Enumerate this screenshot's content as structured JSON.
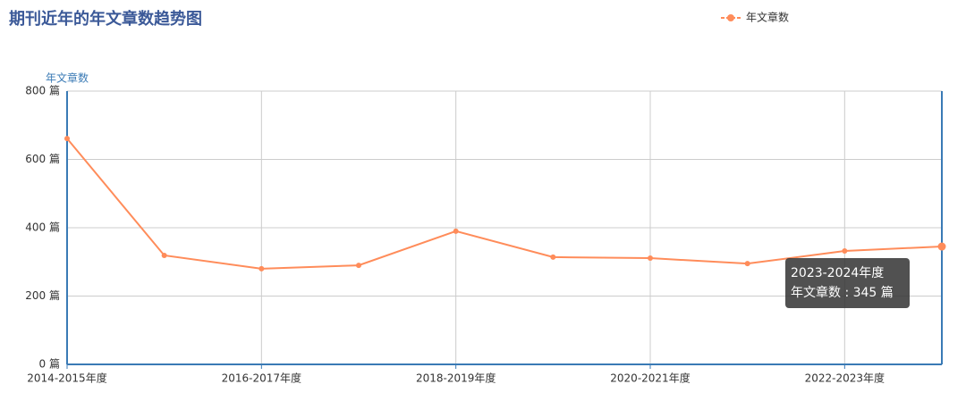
{
  "chart_data": {
    "type": "line",
    "title": "期刊近年的年文章数趋势图",
    "y_axis_name": "年文章数",
    "categories": [
      "2014-2015年度",
      null,
      "2016-2017年度",
      null,
      "2018-2019年度",
      null,
      "2020-2021年度",
      null,
      "2022-2023年度",
      null
    ],
    "series": [
      {
        "name": "年文章数",
        "color": "#ff8c5a",
        "values": [
          661,
          319,
          280,
          290,
          390,
          314,
          311,
          295,
          332,
          345
        ]
      }
    ],
    "ylim": [
      0,
      800
    ],
    "yticks": [
      {
        "value": 0,
        "label": "0 篇"
      },
      {
        "value": 200,
        "label": "200 篇"
      },
      {
        "value": 400,
        "label": "400 篇"
      },
      {
        "value": 600,
        "label": "600 篇"
      },
      {
        "value": 800,
        "label": "800 篇"
      }
    ],
    "grid": true,
    "legend": "top-right",
    "tooltip": {
      "title": "2023-2024年度",
      "text": "年文章数 : 345 篇"
    }
  }
}
